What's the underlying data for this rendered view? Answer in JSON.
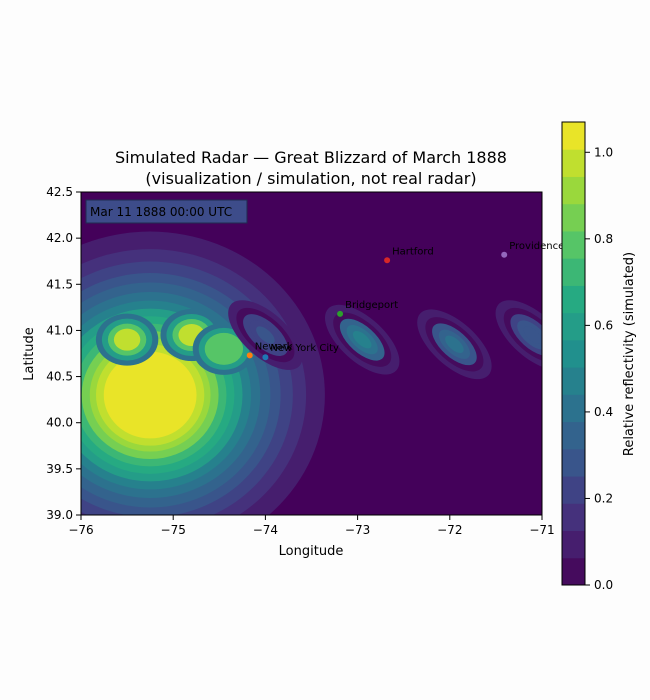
{
  "chart_data": {
    "type": "heatmap",
    "title": "Simulated Radar — Great Blizzard of March 1888",
    "subtitle": "(visualization / simulation, not real radar)",
    "xlabel": "Longitude",
    "ylabel": "Latitude",
    "xlim": [
      -76,
      -71
    ],
    "ylim": [
      39.0,
      42.5
    ],
    "x_ticks": [
      -76,
      -75,
      -74,
      -73,
      -72,
      -71
    ],
    "y_ticks": [
      39.0,
      39.5,
      40.0,
      40.5,
      41.0,
      41.5,
      42.0,
      42.5
    ],
    "x_tick_labels": [
      "−76",
      "−75",
      "−74",
      "−73",
      "−72",
      "−71"
    ],
    "y_tick_labels": [
      "39.0",
      "39.5",
      "40.0",
      "40.5",
      "41.0",
      "41.5",
      "42.0",
      "42.5"
    ],
    "timestamp": "Mar 11 1888  00:00 UTC",
    "colormap": "viridis",
    "colorbar": {
      "label": "Relative reflectivity (simulated)",
      "range": [
        0.0,
        1.07
      ],
      "ticks": [
        0.0,
        0.2,
        0.4,
        0.6,
        0.8,
        1.0
      ],
      "tick_labels": [
        "0.0",
        "0.2",
        "0.4",
        "0.6",
        "0.8",
        "1.0"
      ]
    },
    "cities": [
      {
        "name": "Newark",
        "lon": -74.17,
        "lat": 40.73,
        "color": "#ff7f0e"
      },
      {
        "name": "New York City",
        "lon": -74.0,
        "lat": 40.71,
        "color": "#1f77b4"
      },
      {
        "name": "Bridgeport",
        "lon": -73.19,
        "lat": 41.18,
        "color": "#2ca02c"
      },
      {
        "name": "Hartford",
        "lon": -72.68,
        "lat": 41.76,
        "color": "#d62728"
      },
      {
        "name": "Providence",
        "lon": -71.41,
        "lat": 41.82,
        "color": "#9467bd"
      }
    ],
    "field_features": [
      {
        "kind": "storm-core",
        "lon": -75.25,
        "lat": 40.3,
        "amplitude": 1.25
      },
      {
        "kind": "band",
        "lon": -74.0,
        "lat": 40.95,
        "amplitude": 0.28
      },
      {
        "kind": "band",
        "lon": -72.95,
        "lat": 40.9,
        "amplitude": 0.45
      },
      {
        "kind": "band",
        "lon": -71.95,
        "lat": 40.85,
        "amplitude": 0.42
      },
      {
        "kind": "band",
        "lon": -71.1,
        "lat": 40.95,
        "amplitude": 0.3
      }
    ]
  }
}
